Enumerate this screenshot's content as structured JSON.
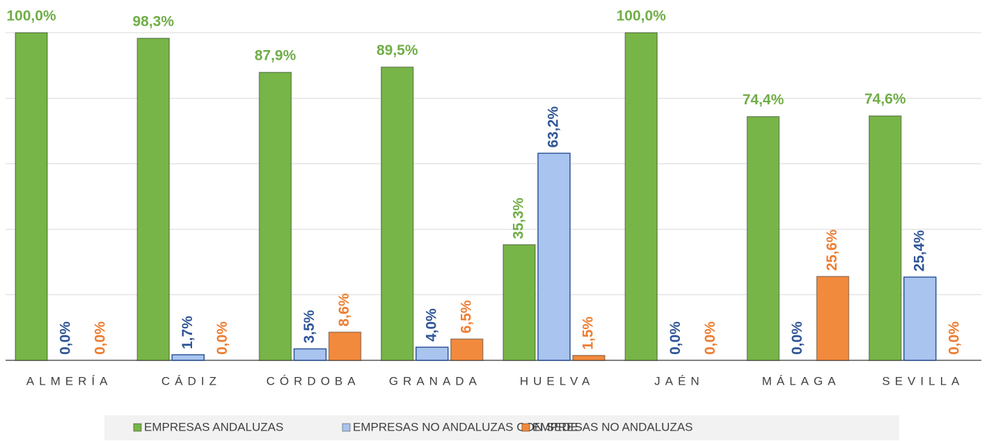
{
  "chart_data": {
    "type": "bar",
    "categories": [
      "ALMERÍA",
      "CÁDIZ",
      "CÓRDOBA",
      "GRANADA",
      "HUELVA",
      "JAÉN",
      "MÁLAGA",
      "SEVILLA"
    ],
    "series": [
      {
        "name": "EMPRESAS ANDALUZAS",
        "color": "#78b548",
        "label_color": "#70ad47",
        "values": [
          100,
          98.3,
          87.9,
          89.5,
          35.3,
          100,
          74.4,
          74.6
        ],
        "value_labels": [
          "100,0%",
          "98,3%",
          "87,9%",
          "89,5%",
          "35,3%",
          "100,0%",
          "74,4%",
          "74,6%"
        ]
      },
      {
        "name": "EMPRESAS NO ANDALUZAS CON SEDE",
        "color": "#a9c4ef",
        "label_color": "#2f5597",
        "values": [
          0,
          1.7,
          3.5,
          4.0,
          63.2,
          0,
          0,
          25.4
        ],
        "value_labels": [
          "0,0%",
          "1,7%",
          "3,5%",
          "4,0%",
          "63,2%",
          "0,0%",
          "0,0%",
          "25,4%"
        ]
      },
      {
        "name": "EMPRESAS NO ANDALUZAS",
        "color": "#f28a3d",
        "label_color": "#ed7d31",
        "values": [
          0,
          0,
          8.6,
          6.5,
          1.5,
          0,
          25.6,
          0
        ],
        "value_labels": [
          "0,0%",
          "0,0%",
          "8,6%",
          "6,5%",
          "1,5%",
          "0,0%",
          "25,6%",
          "0,0%"
        ]
      }
    ],
    "ylim": [
      0,
      100
    ],
    "yticks": [
      0,
      20,
      40,
      60,
      80,
      100
    ],
    "grid": true,
    "legend": "bottom"
  }
}
